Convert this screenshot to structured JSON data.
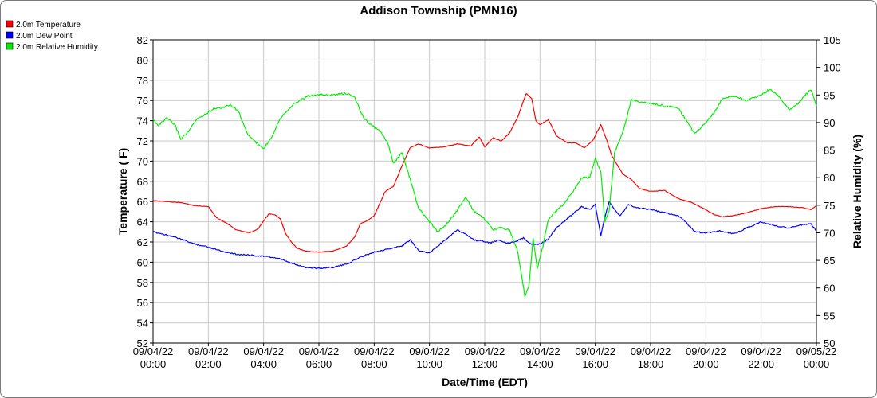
{
  "chart_data": {
    "type": "line",
    "title": "Addison Township (PMN16)",
    "xlabel": "Date/Time (EDT)",
    "ylabel": "Temperature ( F)",
    "y2label": "Relative Humidity (%)",
    "ylim": [
      52,
      82
    ],
    "y2lim": [
      50,
      105
    ],
    "yticks": [
      52,
      54,
      56,
      58,
      60,
      62,
      64,
      66,
      68,
      70,
      72,
      74,
      76,
      78,
      80,
      82
    ],
    "y2ticks": [
      50,
      55,
      60,
      65,
      70,
      75,
      80,
      85,
      90,
      95,
      100,
      105
    ],
    "xlim": [
      0,
      24
    ],
    "x_unit": "hours since 09/04/22 00:00",
    "xticks": [
      {
        "date": "09/04/22",
        "time": "00:00"
      },
      {
        "date": "09/04/22",
        "time": "02:00"
      },
      {
        "date": "09/04/22",
        "time": "04:00"
      },
      {
        "date": "09/04/22",
        "time": "06:00"
      },
      {
        "date": "09/04/22",
        "time": "08:00"
      },
      {
        "date": "09/04/22",
        "time": "10:00"
      },
      {
        "date": "09/04/22",
        "time": "12:00"
      },
      {
        "date": "09/04/22",
        "time": "14:00"
      },
      {
        "date": "09/04/22",
        "time": "16:00"
      },
      {
        "date": "09/04/22",
        "time": "18:00"
      },
      {
        "date": "09/04/22",
        "time": "20:00"
      },
      {
        "date": "09/04/22",
        "time": "22:00"
      },
      {
        "date": "09/05/22",
        "time": "00:00"
      }
    ],
    "grid": true,
    "legend_position": "top-left",
    "series": [
      {
        "name": "2.0m Temperature",
        "color": "#ff0000",
        "axis": "left",
        "x": [
          0,
          0.5,
          1,
          1.5,
          2,
          2.3,
          2.7,
          3,
          3.5,
          3.8,
          4,
          4.2,
          4.4,
          4.6,
          4.8,
          5,
          5.2,
          5.5,
          6,
          6.5,
          7,
          7.3,
          7.5,
          7.8,
          8,
          8.4,
          8.7,
          9,
          9.3,
          9.6,
          9.8,
          10,
          10.5,
          11,
          11.5,
          11.8,
          12,
          12.3,
          12.6,
          12.9,
          13.2,
          13.5,
          13.7,
          13.85,
          14,
          14.3,
          14.6,
          15,
          15.3,
          15.6,
          15.9,
          16.2,
          16.4,
          16.6,
          16.8,
          17,
          17.3,
          17.6,
          18,
          18.5,
          19,
          19.5,
          20,
          20.3,
          20.6,
          21,
          21.5,
          22,
          22.5,
          23,
          23.5,
          23.8,
          24
        ],
        "y": [
          66.1,
          66.0,
          65.9,
          65.6,
          65.5,
          64.4,
          63.8,
          63.2,
          62.9,
          63.3,
          64.1,
          64.8,
          64.7,
          64.3,
          62.8,
          62.0,
          61.4,
          61.1,
          61.0,
          61.1,
          61.6,
          62.5,
          63.8,
          64.2,
          64.6,
          67.0,
          67.5,
          69.5,
          71.3,
          71.7,
          71.5,
          71.3,
          71.4,
          71.7,
          71.5,
          72.4,
          71.4,
          72.3,
          72.0,
          72.8,
          74.4,
          76.7,
          76.2,
          74.0,
          73.6,
          74.1,
          72.5,
          71.8,
          71.8,
          71.3,
          72.0,
          73.6,
          72.2,
          70.5,
          69.6,
          68.7,
          68.2,
          67.3,
          67.0,
          67.1,
          66.3,
          65.9,
          65.2,
          64.7,
          64.5,
          64.6,
          64.9,
          65.3,
          65.5,
          65.5,
          65.4,
          65.2,
          65.6
        ]
      },
      {
        "name": "2.0m Dew Point",
        "color": "#0000ff",
        "axis": "left",
        "x": [
          0,
          0.5,
          1,
          1.5,
          2,
          2.5,
          3,
          3.5,
          4,
          4.5,
          5,
          5.5,
          6,
          6.5,
          7,
          7.5,
          8,
          8.5,
          9,
          9.3,
          9.6,
          10,
          10.3,
          10.6,
          11,
          11.3,
          11.6,
          11.9,
          12.2,
          12.5,
          12.8,
          13.1,
          13.4,
          13.7,
          14,
          14.3,
          14.6,
          14.9,
          15.2,
          15.5,
          15.8,
          16,
          16.2,
          16.35,
          16.5,
          16.7,
          16.9,
          17.2,
          17.5,
          18,
          18.5,
          19,
          19.3,
          19.6,
          20,
          20.5,
          21,
          21.5,
          22,
          22.5,
          23,
          23.5,
          23.8,
          24
        ],
        "y": [
          63.0,
          62.7,
          62.3,
          61.8,
          61.5,
          61.1,
          60.8,
          60.7,
          60.6,
          60.4,
          59.9,
          59.5,
          59.4,
          59.5,
          59.8,
          60.5,
          61.0,
          61.3,
          61.6,
          62.2,
          61.2,
          60.9,
          61.6,
          62.3,
          63.2,
          62.8,
          62.2,
          62.1,
          61.9,
          62.2,
          61.9,
          62.0,
          62.4,
          61.7,
          61.8,
          62.3,
          63.4,
          64.1,
          64.8,
          65.5,
          65.2,
          65.7,
          62.6,
          64.5,
          66.0,
          65.2,
          64.6,
          65.7,
          65.4,
          65.2,
          64.9,
          64.6,
          63.9,
          63.0,
          62.9,
          63.1,
          62.8,
          63.4,
          64.0,
          63.6,
          63.4,
          63.7,
          63.8,
          63.1
        ]
      },
      {
        "name": "2.0m Relative Humidity",
        "color": "#00ee00",
        "axis": "right",
        "x": [
          0,
          0.2,
          0.5,
          0.8,
          1,
          1.3,
          1.6,
          1.9,
          2.2,
          2.5,
          2.8,
          3.1,
          3.4,
          3.7,
          4,
          4.3,
          4.6,
          5,
          5.3,
          5.6,
          6,
          6.5,
          7,
          7.3,
          7.6,
          7.9,
          8.2,
          8.5,
          8.7,
          9,
          9.2,
          9.4,
          9.6,
          10,
          10.3,
          10.6,
          11,
          11.3,
          11.6,
          12,
          12.3,
          12.6,
          12.9,
          13.2,
          13.45,
          13.6,
          13.75,
          13.9,
          14.1,
          14.3,
          14.6,
          14.9,
          15.2,
          15.5,
          15.8,
          16,
          16.2,
          16.35,
          16.5,
          16.7,
          16.9,
          17.1,
          17.3,
          17.6,
          18,
          18.5,
          19,
          19.3,
          19.6,
          20,
          20.3,
          20.6,
          21,
          21.5,
          22,
          22.3,
          22.6,
          23,
          23.3,
          23.6,
          23.8,
          24
        ],
        "y": [
          90.5,
          89.5,
          90.8,
          89.5,
          87.0,
          88.5,
          90.7,
          91.5,
          92.6,
          92.7,
          93.2,
          92.0,
          88.0,
          86.5,
          85.2,
          87.5,
          90.8,
          93.0,
          94.0,
          94.8,
          95.0,
          95.0,
          95.3,
          94.5,
          91.0,
          89.5,
          88.5,
          86.2,
          82.5,
          84.5,
          81.5,
          78.0,
          74.5,
          72.0,
          70.2,
          71.5,
          74.0,
          76.5,
          74.0,
          72.5,
          70.5,
          71.0,
          70.5,
          66.5,
          58.5,
          60.5,
          69.0,
          63.5,
          67.5,
          72.5,
          74.0,
          75.5,
          77.5,
          80.0,
          80.0,
          83.5,
          81.0,
          72.0,
          74.0,
          84.5,
          87.0,
          90.0,
          94.2,
          93.7,
          93.5,
          93.0,
          92.6,
          90.3,
          88.0,
          90.0,
          91.8,
          94.3,
          94.8,
          94.0,
          95.0,
          96.0,
          95.0,
          92.3,
          93.2,
          95.0,
          96.0,
          93.0
        ]
      }
    ]
  }
}
